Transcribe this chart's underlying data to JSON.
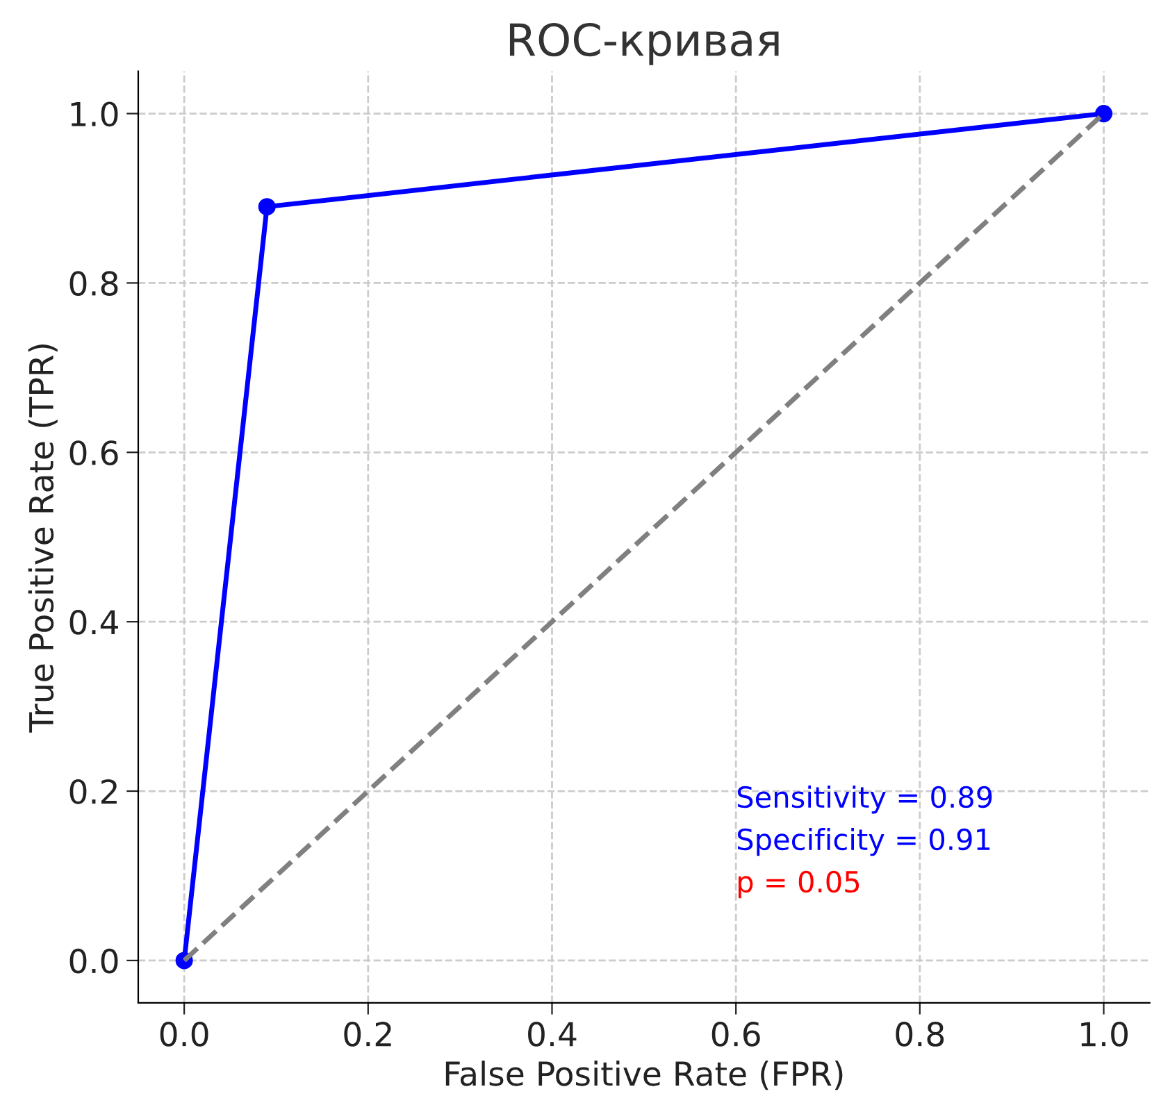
{
  "chart_data": {
    "type": "line",
    "title": "ROC-кривая",
    "xlabel": "False Positive Rate (FPR)",
    "ylabel": "True Positive Rate (TPR)",
    "series": [
      {
        "color": "#0000ff",
        "x": [
          0,
          0.09,
          1
        ],
        "values": [
          0,
          0.89,
          1
        ],
        "marker": "circle",
        "line_style": "solid"
      },
      {
        "color": "#808080",
        "x": [
          0,
          1
        ],
        "values": [
          0,
          1
        ],
        "marker": "none",
        "line_style": "dashed"
      }
    ],
    "xlim": [
      -0.05,
      1.05
    ],
    "ylim": [
      -0.05,
      1.05
    ],
    "xticks": [
      {
        "value": 0,
        "label": "0.0"
      },
      0.2,
      0.4,
      0.6,
      0.8,
      {
        "value": 1,
        "label": "1.0"
      }
    ],
    "yticks": [
      {
        "value": 0,
        "label": "0.0"
      },
      0.2,
      0.4,
      0.6,
      0.8,
      {
        "value": 1,
        "label": "1.0"
      }
    ],
    "grid": true,
    "annotations": [
      "Sensitivity = 0.89",
      "Specificity = 0.91",
      "p = 0.05"
    ]
  }
}
